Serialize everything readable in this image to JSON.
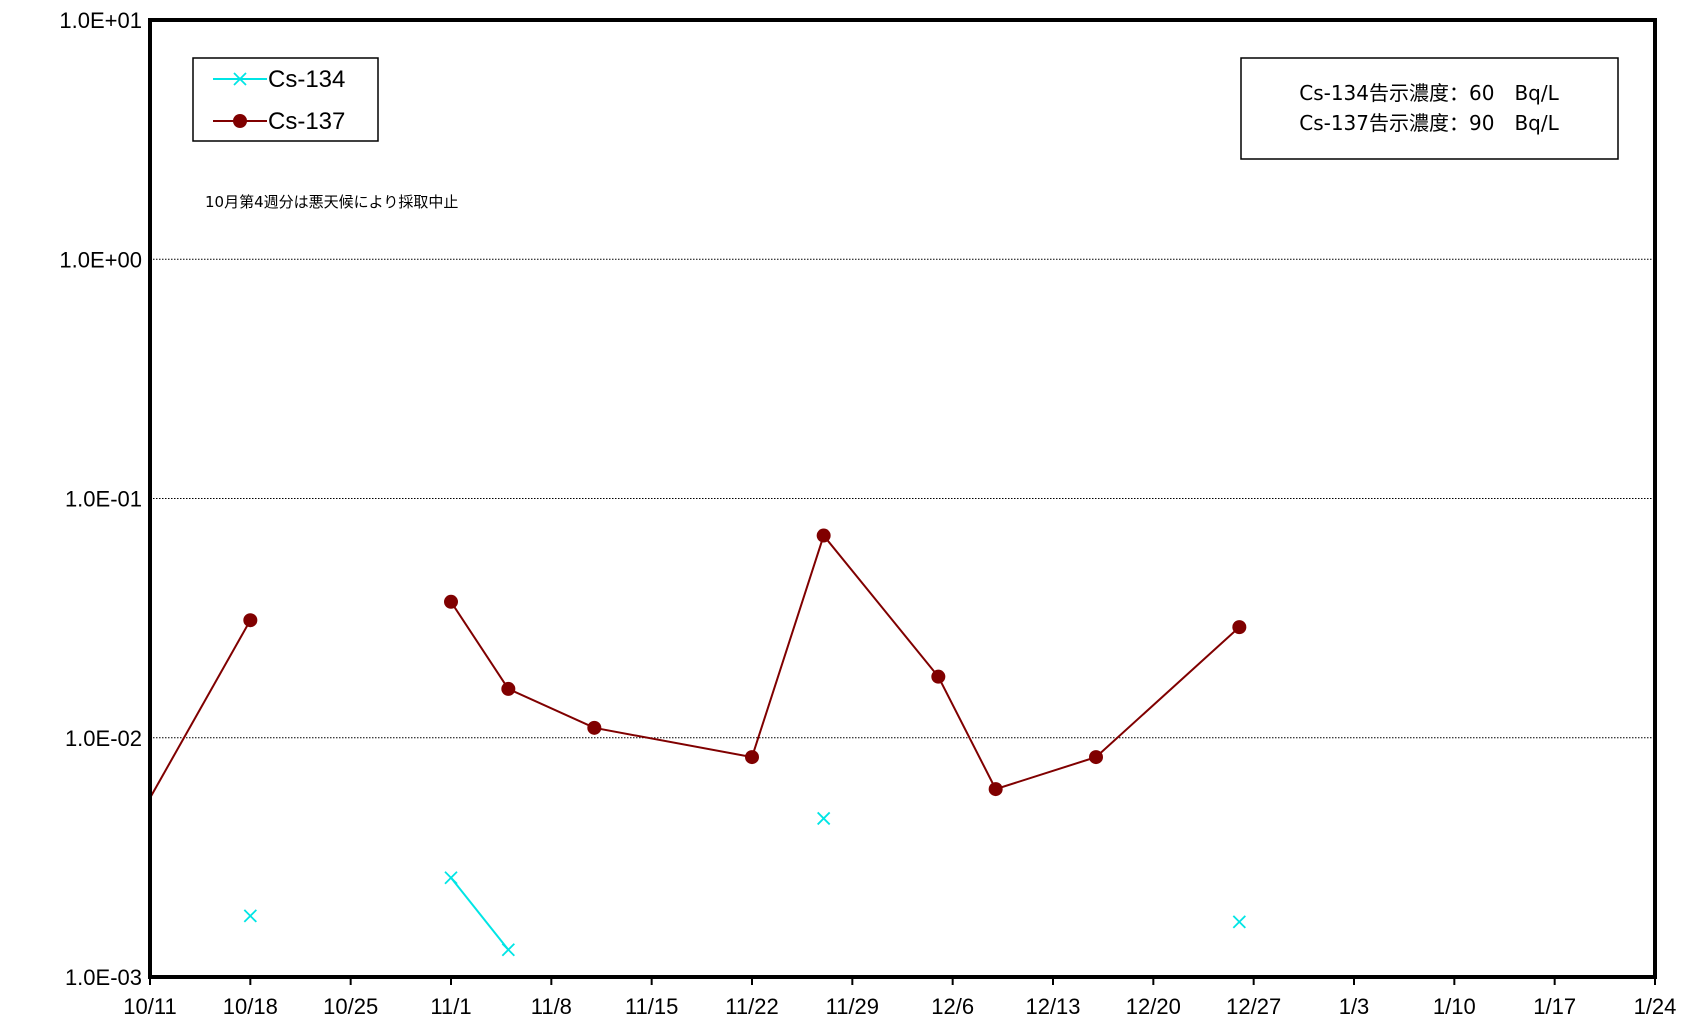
{
  "chart_data": {
    "type": "line",
    "y_scale": "log",
    "ylim": [
      0.001,
      10
    ],
    "y_ticks": [
      "1.0E+01",
      "1.0E+00",
      "1.0E-01",
      "1.0E-02",
      "1.0E-03"
    ],
    "y_tick_values": [
      10,
      1,
      0.1,
      0.01,
      0.001
    ],
    "x_ticks": [
      "10/11",
      "10/18",
      "10/25",
      "11/1",
      "11/8",
      "11/15",
      "11/22",
      "11/29",
      "12/6",
      "12/13",
      "12/20",
      "12/27",
      "1/3",
      "1/10",
      "1/17",
      "1/24"
    ],
    "x_tick_dates": [
      "2011-10-11",
      "2011-10-18",
      "2011-10-25",
      "2011-11-01",
      "2011-11-08",
      "2011-11-15",
      "2011-11-22",
      "2011-11-29",
      "2011-12-06",
      "2011-12-13",
      "2011-12-20",
      "2011-12-27",
      "2012-01-03",
      "2012-01-10",
      "2012-01-17",
      "2012-01-24"
    ],
    "xlim": [
      "2011-10-11",
      "2012-01-24"
    ],
    "grid": "horizontal",
    "legend_position": "top-left",
    "series": [
      {
        "name": "Cs-134",
        "color": "#00e5e5",
        "marker": "x",
        "points": [
          {
            "x": "2011-10-18",
            "y": 0.0018
          },
          {
            "x": "2011-11-01",
            "y": 0.0026
          },
          {
            "x": "2011-11-05",
            "y": 0.0013
          },
          {
            "x": "2011-11-27",
            "y": 0.0046
          },
          {
            "x": "2011-12-26",
            "y": 0.0017
          }
        ],
        "segments": [
          [
            1,
            2
          ]
        ]
      },
      {
        "name": "Cs-137",
        "color": "#800000",
        "marker": "circle",
        "entry": {
          "x": "2011-10-11",
          "y": 0.0056
        },
        "points": [
          {
            "x": "2011-10-18",
            "y": 0.031
          },
          {
            "x": "2011-11-01",
            "y": 0.037
          },
          {
            "x": "2011-11-05",
            "y": 0.016
          },
          {
            "x": "2011-11-11",
            "y": 0.011
          },
          {
            "x": "2011-11-22",
            "y": 0.0083
          },
          {
            "x": "2011-11-27",
            "y": 0.07
          },
          {
            "x": "2011-12-05",
            "y": 0.018
          },
          {
            "x": "2011-12-09",
            "y": 0.0061
          },
          {
            "x": "2011-12-16",
            "y": 0.0083
          },
          {
            "x": "2011-12-26",
            "y": 0.029
          }
        ],
        "segments": [
          [
            0,
            0
          ],
          [
            1,
            9
          ]
        ]
      }
    ],
    "info_box": [
      "Cs-134告示濃度：60　Bq/L",
      "Cs-137告示濃度：90　Bq/L"
    ],
    "annotation": "10月第4週分は悪天候により採取中止"
  }
}
